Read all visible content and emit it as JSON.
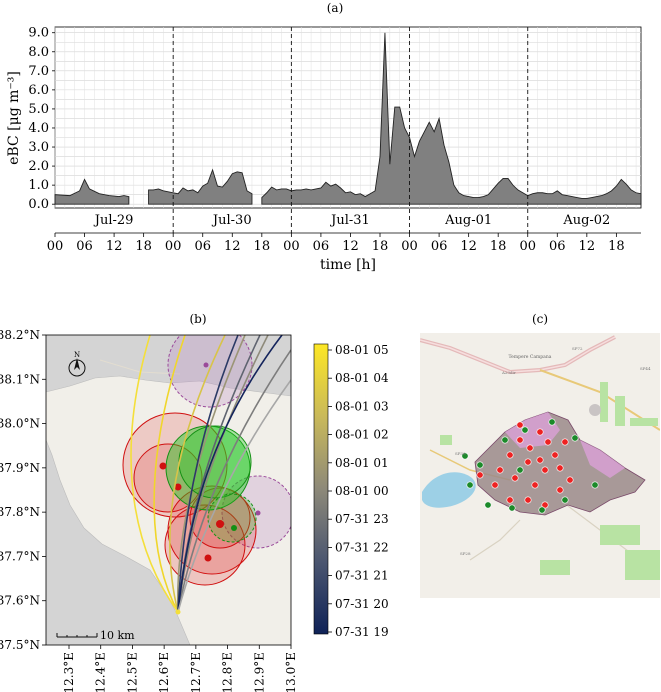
{
  "panels": {
    "a_label": "(a)",
    "b_label": "(b)",
    "c_label": "(c)"
  },
  "chart_data": [
    {
      "type": "area",
      "panel": "(a)",
      "ylabel": "eBC [μg m⁻³]",
      "xlabel": "time [h]",
      "ylim": [
        -0.2,
        9.3
      ],
      "yticks": [
        "0.0",
        "1.0",
        "2.0",
        "3.0",
        "4.0",
        "5.0",
        "6.0",
        "7.0",
        "8.0",
        "9.0"
      ],
      "x_tick_labels": [
        "00",
        "06",
        "12",
        "18",
        "00",
        "06",
        "12",
        "18",
        "00",
        "06",
        "12",
        "18",
        "00",
        "06",
        "12",
        "18",
        "00",
        "06",
        "12",
        "18"
      ],
      "day_labels": [
        "Jul-29",
        "Jul-30",
        "Jul-31",
        "Aug-01",
        "Aug-02"
      ],
      "xlim_hours": [
        0,
        119
      ],
      "grid": true,
      "series": [
        {
          "x": [
            0,
            3,
            5,
            6,
            7,
            9,
            11,
            13,
            14,
            15
          ],
          "y": [
            0.5,
            0.45,
            0.7,
            1.3,
            0.8,
            0.55,
            0.45,
            0.4,
            0.45,
            0.4
          ]
        },
        {
          "x": [
            19,
            20,
            21,
            22,
            23,
            24,
            25,
            26,
            27,
            28,
            29,
            30,
            31,
            32,
            33,
            34,
            35,
            36,
            37,
            38,
            39,
            40
          ],
          "y": [
            0.75,
            0.75,
            0.8,
            0.7,
            0.65,
            0.6,
            0.55,
            0.85,
            0.7,
            0.75,
            0.6,
            0.95,
            1.1,
            1.8,
            0.95,
            0.9,
            1.2,
            1.6,
            1.7,
            1.65,
            0.7,
            0.55
          ]
        },
        {
          "x": [
            42,
            43,
            44,
            45,
            46,
            47,
            48,
            49,
            50,
            51,
            52,
            53,
            54,
            55,
            56,
            57,
            58,
            59,
            60,
            61,
            62,
            63,
            64,
            65,
            66,
            67,
            68,
            69,
            70,
            71,
            72,
            73,
            74,
            75,
            76,
            77,
            78,
            79,
            80,
            81,
            82,
            83,
            84,
            85,
            86,
            87,
            88,
            89,
            90,
            91,
            92,
            93,
            94,
            95,
            96,
            97,
            98,
            99,
            100,
            101,
            102,
            103,
            104,
            105,
            106,
            107,
            108,
            109,
            110,
            111,
            112,
            113,
            114,
            115,
            116,
            117,
            118,
            119
          ],
          "y": [
            0.35,
            0.6,
            0.9,
            0.75,
            0.8,
            0.8,
            0.7,
            0.75,
            0.75,
            0.8,
            0.75,
            0.8,
            0.85,
            1.15,
            0.95,
            1.05,
            0.85,
            0.6,
            0.65,
            0.5,
            0.55,
            0.4,
            0.55,
            0.7,
            2.5,
            9.0,
            2.1,
            5.1,
            5.1,
            4.0,
            3.5,
            2.5,
            3.3,
            3.8,
            4.3,
            3.8,
            4.5,
            3.1,
            2.2,
            1.0,
            0.6,
            0.45,
            0.4,
            0.35,
            0.35,
            0.4,
            0.5,
            0.8,
            1.1,
            1.35,
            1.35,
            1.0,
            0.75,
            0.6,
            0.45,
            0.55,
            0.6,
            0.6,
            0.55,
            0.55,
            0.7,
            0.5,
            0.45,
            0.4,
            0.35,
            0.3,
            0.3,
            0.35,
            0.4,
            0.45,
            0.55,
            0.7,
            0.95,
            1.3,
            1.05,
            0.75,
            0.6,
            0.55
          ]
        }
      ]
    },
    {
      "type": "map",
      "panel": "(b)",
      "y_tick_labels": [
        "37.5°N",
        "37.6°N",
        "37.7°N",
        "37.8°N",
        "37.9°N",
        "38.0°N",
        "38.1°N",
        "38.2°N"
      ],
      "x_tick_labels": [
        "12.3°E",
        "12.4°E",
        "12.5°E",
        "12.6°E",
        "12.7°E",
        "12.8°E",
        "12.9°E",
        "13.0°E"
      ],
      "scale_bar": "10 km",
      "north_label": "N",
      "colorbar_labels": [
        "08-01 05",
        "08-01 04",
        "08-01 03",
        "08-01 02",
        "08-01 01",
        "08-01 00",
        "07-31 23",
        "07-31 22",
        "07-31 21",
        "07-31 20",
        "07-31 19"
      ],
      "colors": {
        "fire_red": "#e02020",
        "fire_green": "#22c922",
        "fire_purple": "#b57cc0",
        "sea": "#d4d4d4",
        "land": "#f1efe9"
      }
    },
    {
      "type": "map",
      "panel": "(c)",
      "place_label": "Tempere Campana",
      "road_labels": [
        "A29dir",
        "SP72",
        "SP44",
        "SP36",
        "SP28"
      ],
      "colors": {
        "burned": "#9b8a8a",
        "burned_pink": "#dba0d8",
        "lake": "#9dd0e6",
        "fields": "#b8e3a3",
        "red_dot": "#ee2222",
        "green_dot": "#1c8a2a"
      }
    }
  ]
}
